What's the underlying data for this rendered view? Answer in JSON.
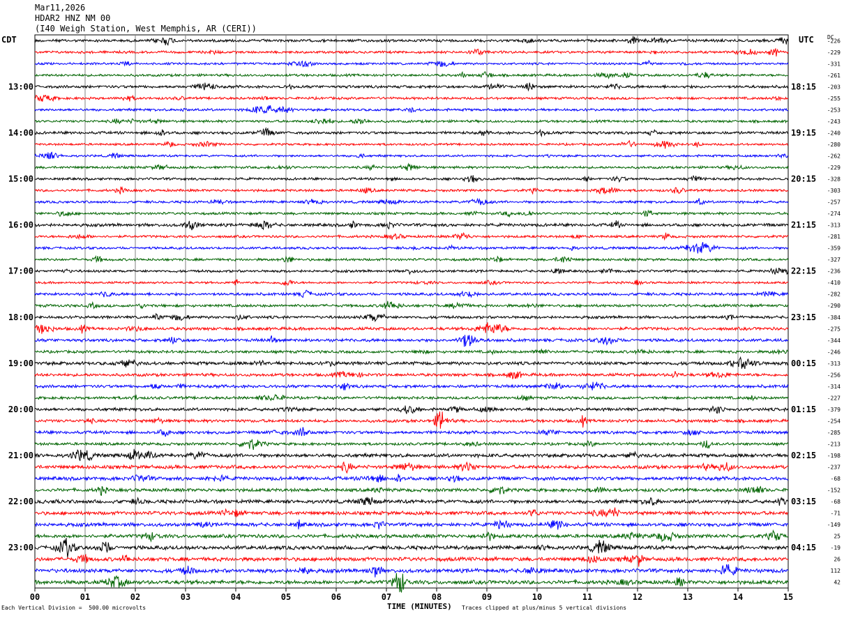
{
  "header": {
    "date": "Mar11,2026",
    "station": "HDAR2 HNZ NM 00",
    "location": "(I40 Weigh Station, West Memphis, AR (CERI))"
  },
  "labels": {
    "left_timezone": "CDT",
    "right_timezone": "UTC",
    "dc": "DC"
  },
  "footer": {
    "left": "Each Vertical Division =  500.00 microvolts",
    "middle": "TIME (MINUTES)",
    "right": "Traces clipped at plus/minus 5 vertical divisions"
  },
  "colors": {
    "trace_cycle": [
      "#000000",
      "#ff0000",
      "#0000ff",
      "#006400"
    ],
    "grid": "#808080"
  },
  "chart_data": {
    "type": "line",
    "xlabel": "TIME (MINUTES)",
    "xlim": [
      0,
      15
    ],
    "x_ticks": [
      "00",
      "01",
      "02",
      "03",
      "04",
      "05",
      "06",
      "07",
      "08",
      "09",
      "10",
      "11",
      "12",
      "13",
      "14",
      "15"
    ],
    "row_count": 48,
    "left_time_labels": [
      {
        "row": 4,
        "label": "13:00"
      },
      {
        "row": 8,
        "label": "14:00"
      },
      {
        "row": 12,
        "label": "15:00"
      },
      {
        "row": 16,
        "label": "16:00"
      },
      {
        "row": 20,
        "label": "17:00"
      },
      {
        "row": 24,
        "label": "18:00"
      },
      {
        "row": 28,
        "label": "19:00"
      },
      {
        "row": 32,
        "label": "20:00"
      },
      {
        "row": 36,
        "label": "21:00"
      },
      {
        "row": 40,
        "label": "22:00"
      },
      {
        "row": 44,
        "label": "23:00"
      }
    ],
    "right_time_labels": [
      {
        "row": 4,
        "label": "18:15"
      },
      {
        "row": 8,
        "label": "19:15"
      },
      {
        "row": 12,
        "label": "20:15"
      },
      {
        "row": 16,
        "label": "21:15"
      },
      {
        "row": 20,
        "label": "22:15"
      },
      {
        "row": 24,
        "label": "23:15"
      },
      {
        "row": 28,
        "label": "00:15"
      },
      {
        "row": 32,
        "label": "01:15"
      },
      {
        "row": 36,
        "label": "02:15"
      },
      {
        "row": 40,
        "label": "03:15"
      },
      {
        "row": 44,
        "label": "04:15"
      }
    ],
    "dc_offsets": [
      -226,
      -229,
      -331,
      -261,
      -203,
      -255,
      -253,
      -243,
      -240,
      -280,
      -262,
      -229,
      -328,
      -303,
      -257,
      -274,
      -313,
      -281,
      -359,
      -327,
      -236,
      -410,
      -282,
      -290,
      -384,
      -275,
      -344,
      -246,
      -313,
      -256,
      -314,
      -227,
      -379,
      -254,
      -285,
      -213,
      -198,
      -237,
      -68,
      -152,
      -68,
      -71,
      -149,
      25,
      -19,
      26,
      112,
      42
    ],
    "trace_amplitude_relative": [
      1.0,
      0.9,
      0.8,
      0.9,
      1.0,
      0.9,
      0.9,
      0.9,
      1.0,
      0.8,
      0.8,
      0.9,
      0.9,
      0.9,
      0.9,
      0.9,
      1.1,
      0.9,
      0.9,
      0.9,
      0.9,
      0.8,
      1.0,
      1.0,
      1.0,
      1.1,
      1.1,
      1.0,
      1.2,
      1.1,
      1.1,
      1.0,
      1.1,
      1.1,
      1.1,
      1.0,
      1.3,
      1.3,
      1.3,
      1.2,
      1.3,
      1.3,
      1.3,
      1.3,
      1.4,
      1.4,
      1.4,
      1.4
    ]
  }
}
